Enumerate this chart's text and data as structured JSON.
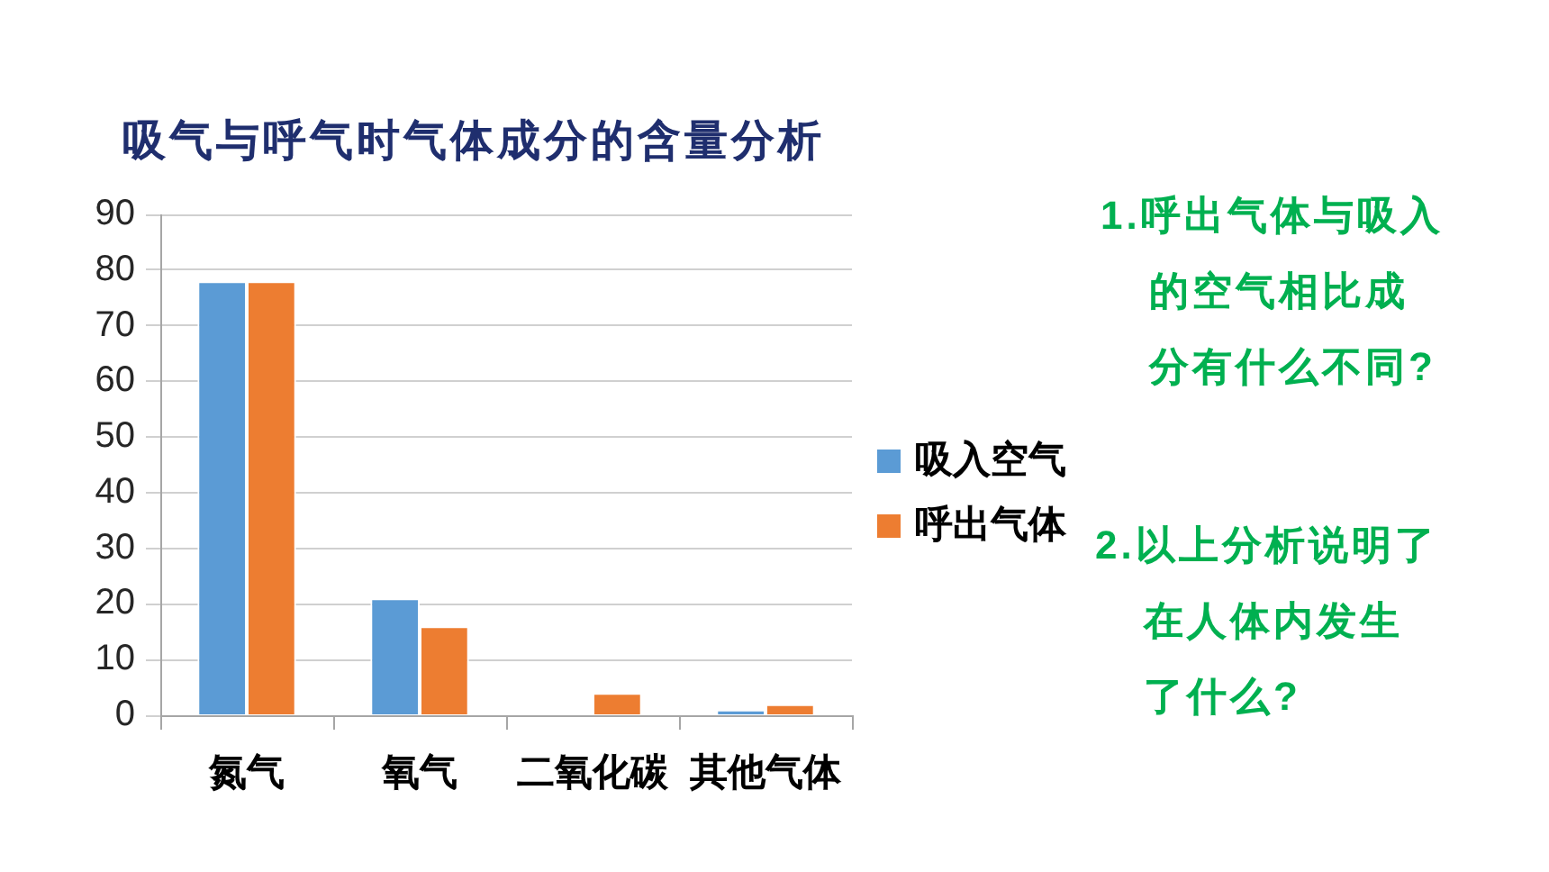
{
  "chart_data": {
    "type": "bar",
    "title": "吸气与呼气时气体成分的含量分析",
    "categories": [
      "氮气",
      "氧气",
      "二氧化碳",
      "其他气体"
    ],
    "series": [
      {
        "name": "吸入空气",
        "color": "#5b9bd5",
        "values": [
          78,
          21,
          0,
          1
        ]
      },
      {
        "name": "呼出气体",
        "color": "#ed7d31",
        "values": [
          78,
          16,
          4,
          2
        ]
      }
    ],
    "ylim": [
      0,
      90
    ],
    "yticks": [
      0,
      10,
      20,
      30,
      40,
      50,
      60,
      70,
      80,
      90
    ],
    "grid": "y",
    "legend": "right",
    "annotations": [
      "1.呼出气体与吸入的空气相比成分有什么不同?",
      "2.以上分析说明了在人体内发生了什么?"
    ]
  }
}
